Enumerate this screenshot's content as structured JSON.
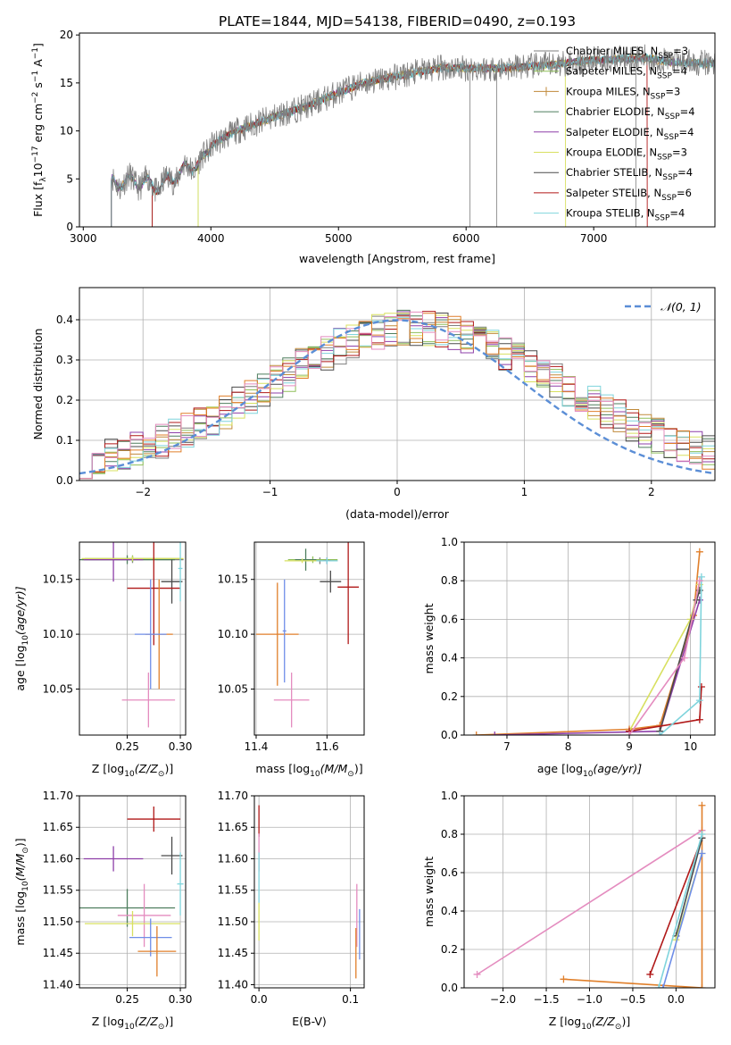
{
  "figure_title": "PLATE=1844, MJD=54138, FIBERID=0490, z=0.193",
  "colors": {
    "chabrier_miles": "#7f7f7f",
    "salpeter_miles": "#8fbf5a",
    "kroupa_miles": "#c08a3a",
    "chabrier_elodie": "#4e7e5e",
    "salpeter_elodie": "#8e3fa8",
    "kroupa_elodie": "#d8e060",
    "chabrier_stelib": "#4a4a4a",
    "salpeter_stelib": "#b01818",
    "kroupa_stelib": "#7fd4dc",
    "normal_curve": "#5b8ed6",
    "extra_orange": "#e07f2a",
    "extra_blue": "#6f8ee8",
    "extra_pink": "#e48cbf"
  },
  "chart_data": [
    {
      "id": "spectrum",
      "type": "line",
      "title": "PLATE=1844, MJD=54138, FIBERID=0490, z=0.193",
      "xlabel": "wavelength [Angstrom, rest frame]",
      "ylabel": "Flux [f$_\\lambda$10$^{-17}$ erg cm$^{-2}$ s$^{-1}$ A$^{-1}$]",
      "ylabel_parts": {
        "base": "Flux [f",
        "lam": "λ",
        "mid1": "10",
        "e1": "−17",
        "mid2": " erg cm",
        "e2": "−2",
        "mid3": " s",
        "e3": "−1",
        "mid4": " A",
        "e4": "−1",
        "end": "]"
      },
      "xlim": [
        2970,
        7950
      ],
      "ylim": [
        0,
        20.2
      ],
      "xticks": [
        3000,
        4000,
        5000,
        6000,
        7000
      ],
      "yticks": [
        0,
        5,
        10,
        15,
        20
      ],
      "legend_position": "top-right",
      "continuum_nodes": [
        [
          3220,
          4.6
        ],
        [
          3400,
          4.8
        ],
        [
          3600,
          4.2
        ],
        [
          3800,
          6.0
        ],
        [
          3950,
          7.0
        ],
        [
          4000,
          8.5
        ],
        [
          4200,
          10.0
        ],
        [
          4500,
          11.5
        ],
        [
          4800,
          12.8
        ],
        [
          5000,
          14.0
        ],
        [
          5200,
          15.0
        ],
        [
          5500,
          15.8
        ],
        [
          5800,
          16.6
        ],
        [
          6200,
          16.5
        ],
        [
          6600,
          16.8
        ],
        [
          7000,
          17.4
        ],
        [
          7400,
          17.6
        ],
        [
          7600,
          17.2
        ],
        [
          7950,
          17.0
        ]
      ],
      "series": [
        {
          "name_parts": [
            "Chabrier MILES, N",
            "SSP",
            "=3"
          ],
          "color_key": "chabrier_miles"
        },
        {
          "name_parts": [
            "Salpeter MILES, N",
            "SSP",
            "=4"
          ],
          "color_key": "salpeter_miles"
        },
        {
          "name_parts": [
            "Kroupa MILES, N",
            "SSP",
            "=3"
          ],
          "color_key": "kroupa_miles"
        },
        {
          "name_parts": [
            "Chabrier ELODIE, N",
            "SSP",
            "=4"
          ],
          "color_key": "chabrier_elodie"
        },
        {
          "name_parts": [
            "Salpeter ELODIE, N",
            "SSP",
            "=4"
          ],
          "color_key": "salpeter_elodie"
        },
        {
          "name_parts": [
            "Kroupa ELODIE, N",
            "SSP",
            "=3"
          ],
          "color_key": "kroupa_elodie"
        },
        {
          "name_parts": [
            "Chabrier STELIB, N",
            "SSP",
            "=4"
          ],
          "color_key": "chabrier_stelib"
        },
        {
          "name_parts": [
            "Salpeter STELIB, N",
            "SSP",
            "=6"
          ],
          "color_key": "salpeter_stelib"
        },
        {
          "name_parts": [
            "Kroupa STELIB, N",
            "SSP",
            "=4"
          ],
          "color_key": "kroupa_stelib"
        }
      ]
    },
    {
      "id": "residuals",
      "type": "line",
      "xlabel": "(data-model)/error",
      "ylabel": "Normed distribution",
      "xlim": [
        -2.5,
        2.5
      ],
      "ylim": [
        0,
        0.48
      ],
      "xticks": [
        -2,
        -1,
        0,
        1,
        2
      ],
      "yticks": [
        0.0,
        0.1,
        0.2,
        0.3,
        0.4
      ],
      "grid": true,
      "legend_position": "top-right",
      "normal_label": "𝒩(0, 1)",
      "bin_width": 0.1
    },
    {
      "id": "age_vs_Z",
      "type": "scatter",
      "xlabel_parts": [
        "Z [log",
        "10",
        "(Z/Z",
        "⊙",
        ")]"
      ],
      "ylabel_parts": [
        "age  [log",
        "10",
        "(age/yr)]"
      ],
      "xlim": [
        0.205,
        0.305
      ],
      "ylim": [
        10.008,
        10.184
      ],
      "xticks": [
        0.25,
        0.3
      ],
      "yticks": [
        10.05,
        10.1,
        10.15
      ],
      "grid": true,
      "points": [
        {
          "color_key": "chabrier_miles",
          "x": 0.255,
          "xerr": 0.048,
          "y": 10.168,
          "yerr": 0.003
        },
        {
          "color_key": "salpeter_miles",
          "x": 0.255,
          "xerr": 0.045,
          "y": 10.169,
          "yerr": 0.003
        },
        {
          "color_key": "chabrier_elodie",
          "x": 0.25,
          "xerr": 0.045,
          "y": 10.168,
          "yerr": 0.004
        },
        {
          "color_key": "salpeter_elodie",
          "x": 0.237,
          "xerr": 0.028,
          "y": 10.168,
          "yerr": 0.02
        },
        {
          "color_key": "kroupa_elodie",
          "x": 0.255,
          "xerr": 0.048,
          "y": 10.169,
          "yerr": 0.002
        },
        {
          "color_key": "chabrier_stelib",
          "x": 0.292,
          "xerr": 0.01,
          "y": 10.148,
          "yerr": 0.02
        },
        {
          "color_key": "salpeter_stelib",
          "x": 0.275,
          "xerr": 0.025,
          "y": 10.142,
          "yerr": 0.052
        },
        {
          "color_key": "kroupa_stelib",
          "x": 0.3,
          "xerr": 0.002,
          "y": 10.16,
          "yerr": 0.03
        },
        {
          "color_key": "extra_orange",
          "x": 0.28,
          "xerr": 0.013,
          "y": 10.1,
          "yerr": 0.05
        },
        {
          "color_key": "extra_blue",
          "x": 0.272,
          "xerr": 0.015,
          "y": 10.1,
          "yerr": 0.05
        },
        {
          "color_key": "extra_pink",
          "x": 0.27,
          "xerr": 0.025,
          "y": 10.04,
          "yerr": 0.025
        }
      ]
    },
    {
      "id": "age_vs_mass",
      "type": "scatter",
      "xlabel_parts": [
        "mass [log",
        "10",
        "(M/M",
        "⊙",
        ")]"
      ],
      "xlim": [
        11.395,
        11.705
      ],
      "ylim": [
        10.008,
        10.184
      ],
      "xticks": [
        11.4,
        11.6
      ],
      "yticks": [
        10.05,
        10.1,
        10.15
      ],
      "grid": true,
      "points": [
        {
          "color_key": "chabrier_miles",
          "x": 11.58,
          "xerr": 0.05,
          "y": 10.167,
          "yerr": 0.003
        },
        {
          "color_key": "salpeter_miles",
          "x": 11.56,
          "xerr": 0.07,
          "y": 10.168,
          "yerr": 0.003
        },
        {
          "color_key": "chabrier_elodie",
          "x": 11.54,
          "xerr": 0.03,
          "y": 10.168,
          "yerr": 0.01
        },
        {
          "color_key": "salpeter_elodie",
          "x": 11.6,
          "xerr": 0.01,
          "y": 10.167,
          "yerr": 0.003
        },
        {
          "color_key": "kroupa_elodie",
          "x": 11.53,
          "xerr": 0.05,
          "y": 10.167,
          "yerr": 0.002
        },
        {
          "color_key": "chabrier_stelib",
          "x": 11.61,
          "xerr": 0.03,
          "y": 10.148,
          "yerr": 0.01
        },
        {
          "color_key": "salpeter_stelib",
          "x": 11.66,
          "xerr": 0.03,
          "y": 10.143,
          "yerr": 0.052
        },
        {
          "color_key": "kroupa_stelib",
          "x": 11.6,
          "xerr": 0.03,
          "y": 10.167,
          "yerr": 0.003
        },
        {
          "color_key": "extra_orange",
          "x": 11.46,
          "xerr": 0.06,
          "y": 10.1,
          "yerr": 0.047
        },
        {
          "color_key": "extra_blue",
          "x": 11.48,
          "xerr": 0.005,
          "y": 10.103,
          "yerr": 0.047
        },
        {
          "color_key": "extra_pink",
          "x": 11.5,
          "xerr": 0.05,
          "y": 10.04,
          "yerr": 0.025
        }
      ]
    },
    {
      "id": "weight_vs_age",
      "type": "line",
      "xlabel_parts": [
        "age  [log",
        "10",
        "(age/yr)]"
      ],
      "ylabel": "mass weight",
      "xlim": [
        6.3,
        10.4
      ],
      "ylim": [
        0,
        1.0
      ],
      "xticks": [
        7,
        8,
        9,
        10
      ],
      "yticks": [
        0.0,
        0.2,
        0.4,
        0.6,
        0.8,
        1.0
      ],
      "grid": true,
      "series": [
        {
          "color_key": "extra_orange",
          "x": [
            6.5,
            9.0,
            9.5,
            10.05,
            10.15
          ],
          "y": [
            0.0,
            0.03,
            0.05,
            0.62,
            0.95
          ]
        },
        {
          "color_key": "salpeter_elodie",
          "x": [
            6.8,
            9.5,
            10.15
          ],
          "y": [
            0.0,
            0.02,
            0.7
          ]
        },
        {
          "color_key": "kroupa_elodie",
          "x": [
            9.0,
            10.0,
            10.15
          ],
          "y": [
            0.02,
            0.6,
            0.78
          ]
        },
        {
          "color_key": "chabrier_stelib",
          "x": [
            9.5,
            10.1,
            10.15
          ],
          "y": [
            0.02,
            0.7,
            0.75
          ]
        },
        {
          "color_key": "salpeter_stelib",
          "x": [
            9.0,
            10.15,
            10.18
          ],
          "y": [
            0.02,
            0.08,
            0.25
          ]
        },
        {
          "color_key": "kroupa_stelib",
          "x": [
            9.5,
            10.15,
            10.18
          ],
          "y": [
            0.0,
            0.18,
            0.82
          ]
        },
        {
          "color_key": "extra_pink",
          "x": [
            9.0,
            9.9,
            10.15
          ],
          "y": [
            0.0,
            0.4,
            0.8
          ]
        }
      ]
    },
    {
      "id": "mass_vs_Z",
      "type": "scatter",
      "xlabel_parts": [
        "Z [log",
        "10",
        "(Z/Z",
        "⊙",
        ")]"
      ],
      "ylabel_parts": [
        "mass [log",
        "10",
        "(M/M",
        "⊙",
        ")]"
      ],
      "xlim": [
        0.205,
        0.305
      ],
      "ylim": [
        11.395,
        11.7
      ],
      "xticks": [
        0.25,
        0.3
      ],
      "yticks": [
        11.4,
        11.45,
        11.5,
        11.55,
        11.6,
        11.65,
        11.7
      ],
      "grid": true,
      "points": [
        {
          "color_key": "salpeter_stelib",
          "x": 0.275,
          "xerr": 0.025,
          "y": 11.663,
          "yerr": 0.02
        },
        {
          "color_key": "salpeter_elodie",
          "x": 0.237,
          "xerr": 0.028,
          "y": 11.6,
          "yerr": 0.02
        },
        {
          "color_key": "chabrier_stelib",
          "x": 0.292,
          "xerr": 0.01,
          "y": 11.605,
          "yerr": 0.03
        },
        {
          "color_key": "kroupa_stelib",
          "x": 0.3,
          "xerr": 0.003,
          "y": 11.56,
          "yerr": 0.05
        },
        {
          "color_key": "chabrier_elodie",
          "x": 0.25,
          "xerr": 0.045,
          "y": 11.522,
          "yerr": 0.03
        },
        {
          "color_key": "extra_pink",
          "x": 0.266,
          "xerr": 0.025,
          "y": 11.51,
          "yerr": 0.05
        },
        {
          "color_key": "kroupa_elodie",
          "x": 0.255,
          "xerr": 0.045,
          "y": 11.497,
          "yerr": 0.02
        },
        {
          "color_key": "extra_blue",
          "x": 0.272,
          "xerr": 0.02,
          "y": 11.475,
          "yerr": 0.03
        },
        {
          "color_key": "extra_orange",
          "x": 0.278,
          "xerr": 0.018,
          "y": 11.453,
          "yerr": 0.04
        }
      ]
    },
    {
      "id": "mass_vs_EBV",
      "type": "scatter",
      "xlabel": "E(B-V)",
      "xlim": [
        -0.005,
        0.115
      ],
      "ylim": [
        11.395,
        11.7
      ],
      "xticks": [
        0.0,
        0.1
      ],
      "yticks": [
        11.4,
        11.45,
        11.5,
        11.55,
        11.6,
        11.65,
        11.7
      ],
      "grid": true,
      "points": [
        {
          "color_key": "salpeter_stelib",
          "x": 0.0,
          "xerr": 0.0,
          "y": 11.66,
          "yerr": 0.025
        },
        {
          "color_key": "extra_pink",
          "x": 0.0,
          "xerr": 0.0,
          "y": 11.61,
          "yerr": 0.03
        },
        {
          "color_key": "kroupa_stelib",
          "x": 0.0,
          "xerr": 0.0,
          "y": 11.57,
          "yerr": 0.04
        },
        {
          "color_key": "kroupa_elodie",
          "x": 0.0,
          "xerr": 0.0,
          "y": 11.5,
          "yerr": 0.03
        },
        {
          "color_key": "extra_pink",
          "x": 0.107,
          "xerr": 0.0,
          "y": 11.51,
          "yerr": 0.05
        },
        {
          "color_key": "extra_blue",
          "x": 0.11,
          "xerr": 0.0,
          "y": 11.48,
          "yerr": 0.04
        },
        {
          "color_key": "extra_orange",
          "x": 0.106,
          "xerr": 0.0,
          "y": 11.45,
          "yerr": 0.04
        }
      ]
    },
    {
      "id": "weight_vs_Z",
      "type": "line",
      "xlabel_parts": [
        "Z [log",
        "10",
        "(Z/Z",
        "⊙",
        ")]"
      ],
      "ylabel": "mass weight",
      "xlim": [
        -2.45,
        0.45
      ],
      "ylim": [
        0,
        1.0
      ],
      "xticks": [
        -2.0,
        -1.5,
        -1.0,
        -0.5,
        0.0
      ],
      "yticks": [
        0.0,
        0.2,
        0.4,
        0.6,
        0.8,
        1.0
      ],
      "grid": true,
      "series": [
        {
          "color_key": "extra_pink",
          "x": [
            -2.3,
            0.3
          ],
          "y": [
            0.07,
            0.82
          ]
        },
        {
          "color_key": "extra_orange",
          "x": [
            -1.3,
            0.3,
            0.3
          ],
          "y": [
            0.045,
            0.0,
            0.95
          ]
        },
        {
          "color_key": "salpeter_stelib",
          "x": [
            -0.3,
            0.3
          ],
          "y": [
            0.07,
            0.78
          ]
        },
        {
          "color_key": "chabrier_stelib",
          "x": [
            0.0,
            0.3
          ],
          "y": [
            0.27,
            0.78
          ]
        },
        {
          "color_key": "kroupa_elodie",
          "x": [
            0.0,
            0.3
          ],
          "y": [
            0.25,
            0.7
          ]
        },
        {
          "color_key": "kroupa_stelib",
          "x": [
            -0.2,
            0.3
          ],
          "y": [
            0.0,
            0.8
          ]
        },
        {
          "color_key": "extra_blue",
          "x": [
            -0.15,
            0.3
          ],
          "y": [
            0.0,
            0.7
          ]
        }
      ]
    }
  ]
}
